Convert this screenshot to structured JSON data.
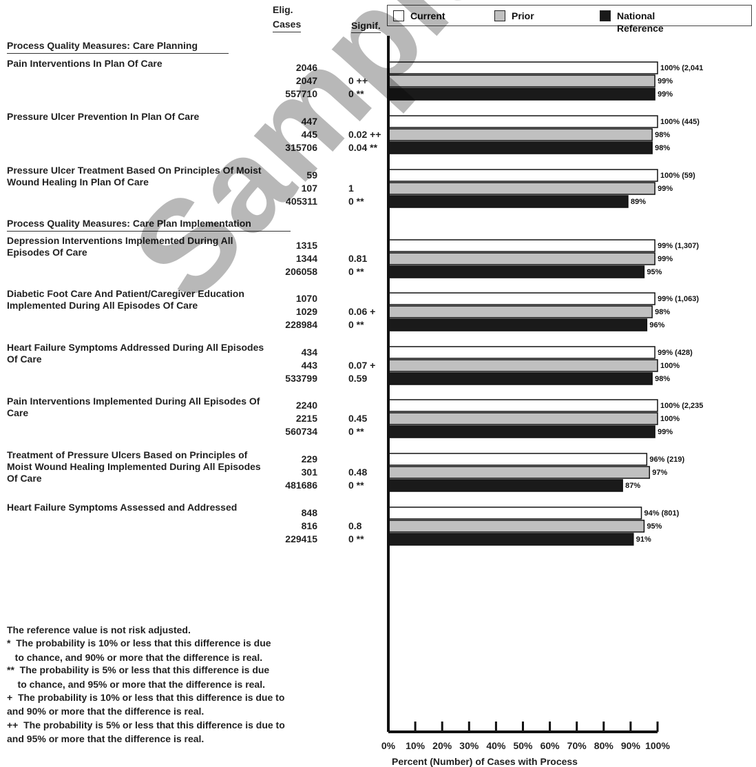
{
  "header": {
    "elig_line1": "Elig.",
    "elig_line2": "Cases",
    "signif": "Signif."
  },
  "legend": {
    "current": "Current",
    "prior": "Prior",
    "national": "National Reference"
  },
  "colors": {
    "current": "#ffffff",
    "prior": "#c0c0c0",
    "national": "#1a1a1a"
  },
  "sections": [
    "Process Quality Measures: Care Planning",
    "Process Quality Measures: Care Plan Implementation"
  ],
  "footnotes": [
    "The reference value is not risk adjusted.",
    "*  The probability is 10% or less that this difference is due",
    "   to chance, and 90% or more that the difference is real.",
    "**  The probability is 5% or less that this difference is due",
    "    to chance, and 95% or more that the difference is real.",
    "+  The probability is 10% or less that this difference is due to",
    "and 90% or more that the difference is real.",
    "++  The probability is 5% or less that this difference is due to",
    "and 95% or more that the difference is real."
  ],
  "watermark": "Sample Report",
  "chart_data": {
    "type": "bar",
    "orientation": "horizontal",
    "xlabel": "Percent (Number) of Cases with Process",
    "xlim": [
      0,
      100
    ],
    "x_ticks": [
      "0%",
      "10%",
      "20%",
      "30%",
      "40%",
      "50%",
      "60%",
      "70%",
      "80%",
      "90%",
      "100%"
    ],
    "series_names": [
      "Current",
      "Prior",
      "National Reference"
    ],
    "measures": [
      {
        "name": "Pain Interventions In Plan Of Care",
        "cases": [
          "2046",
          "2047",
          "557710"
        ],
        "signif": [
          "",
          "0 ++",
          "0 **"
        ],
        "values": [
          100,
          99,
          99
        ],
        "labels": [
          "100% (2,041",
          "99%",
          "99%"
        ]
      },
      {
        "name": "Pressure Ulcer Prevention In Plan Of Care",
        "cases": [
          "447",
          "445",
          "315706"
        ],
        "signif": [
          "",
          "0.02 ++",
          "0.04 **"
        ],
        "values": [
          100,
          98,
          98
        ],
        "labels": [
          "100% (445)",
          "98%",
          "98%"
        ]
      },
      {
        "name": "Pressure Ulcer Treatment Based On Principles Of Moist Wound Healing In Plan Of Care",
        "cases": [
          "59",
          "107",
          "405311"
        ],
        "signif": [
          "",
          "1",
          "0 **"
        ],
        "values": [
          100,
          99,
          89
        ],
        "labels": [
          "100% (59)",
          "99%",
          "89%"
        ]
      },
      {
        "name": "Depression Interventions Implemented During All Episodes Of Care",
        "cases": [
          "1315",
          "1344",
          "206058"
        ],
        "signif": [
          "",
          "0.81",
          "0 **"
        ],
        "values": [
          99,
          99,
          95
        ],
        "labels": [
          "99% (1,307)",
          "99%",
          "95%"
        ]
      },
      {
        "name": "Diabetic Foot Care And Patient/Caregiver Education Implemented During All Episodes Of Care",
        "cases": [
          "1070",
          "1029",
          "228984"
        ],
        "signif": [
          "",
          "0.06 +",
          "0 **"
        ],
        "values": [
          99,
          98,
          96
        ],
        "labels": [
          "99% (1,063)",
          "98%",
          "96%"
        ]
      },
      {
        "name": "Heart Failure Symptoms Addressed During All Episodes Of Care",
        "cases": [
          "434",
          "443",
          "533799"
        ],
        "signif": [
          "",
          "0.07 +",
          "0.59"
        ],
        "values": [
          99,
          100,
          98
        ],
        "labels": [
          "99% (428)",
          "100%",
          "98%"
        ]
      },
      {
        "name": "Pain Interventions Implemented During All Episodes Of Care",
        "cases": [
          "2240",
          "2215",
          "560734"
        ],
        "signif": [
          "",
          "0.45",
          "0 **"
        ],
        "values": [
          100,
          100,
          99
        ],
        "labels": [
          "100% (2,235",
          "100%",
          "99%"
        ]
      },
      {
        "name": "Treatment of Pressure Ulcers Based on Principles of Moist Wound Healing Implemented During All Episodes Of Care",
        "cases": [
          "229",
          "301",
          "481686"
        ],
        "signif": [
          "",
          "0.48",
          "0 **"
        ],
        "values": [
          96,
          97,
          87
        ],
        "labels": [
          "96% (219)",
          "97%",
          "87%"
        ]
      },
      {
        "name": "Heart Failure Symptoms Assessed and Addressed",
        "cases": [
          "848",
          "816",
          "229415"
        ],
        "signif": [
          "",
          "0.8",
          "0 **"
        ],
        "values": [
          94,
          95,
          91
        ],
        "labels": [
          "94% (801)",
          "95%",
          "91%"
        ]
      }
    ]
  }
}
